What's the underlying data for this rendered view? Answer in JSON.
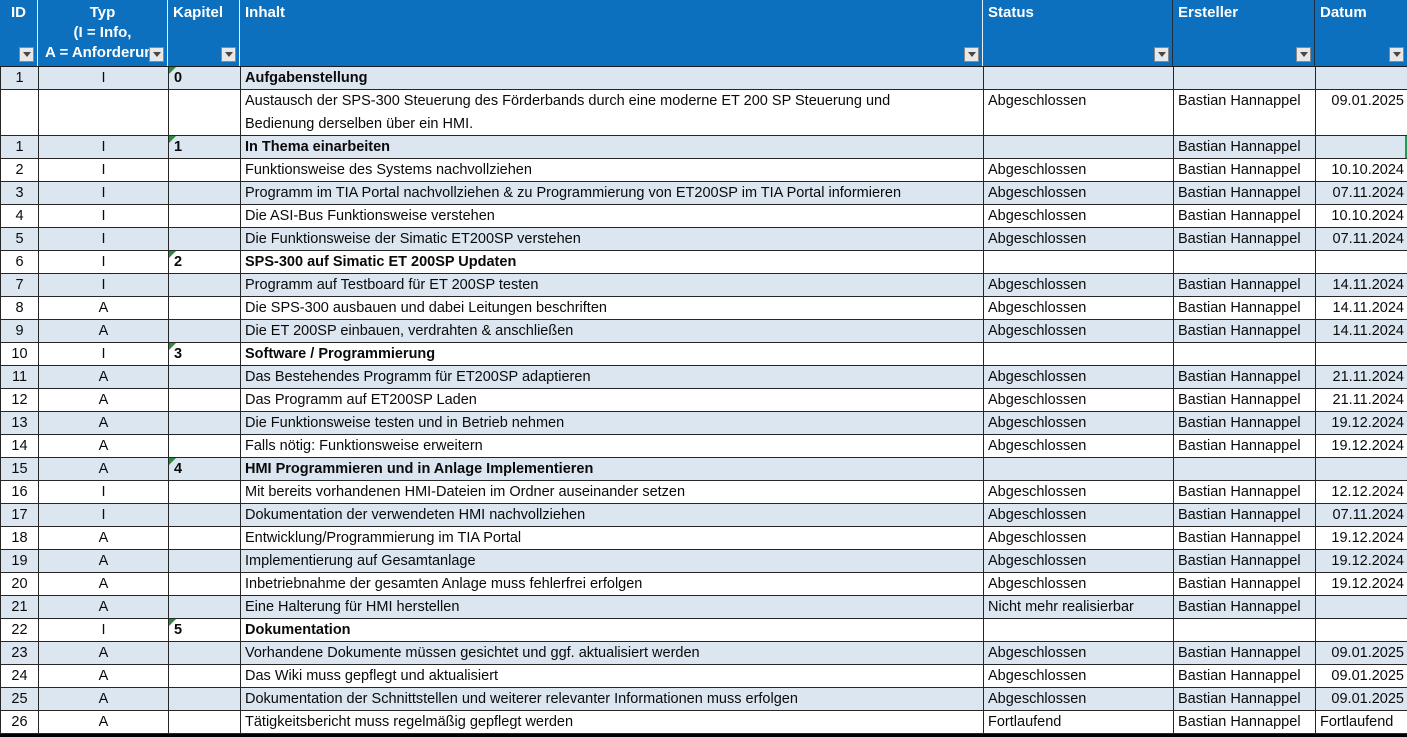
{
  "colors": {
    "header_blue": "#0C70BE",
    "banded_row_blue": "#DCE6F1",
    "grid_border": "#262626",
    "error_triangle_green": "#2E8B3E",
    "selection_edge_green": "#1F9E50",
    "filter_button_bg": "#E8E8E8"
  },
  "table": {
    "columns": [
      {
        "key": "id",
        "label": "ID"
      },
      {
        "key": "typ",
        "label_lines": [
          "Typ",
          "(I = Info,",
          "A = Anforderun"
        ]
      },
      {
        "key": "kapitel",
        "label": "Kapitel"
      },
      {
        "key": "inhalt",
        "label": "Inhalt"
      },
      {
        "key": "status",
        "label": "Status"
      },
      {
        "key": "ersteller",
        "label": "Ersteller"
      },
      {
        "key": "datum",
        "label": "Datum"
      }
    ],
    "rows": [
      {
        "id": "1",
        "typ": "I",
        "kapitel": "0",
        "inhalt": "Aufgabenstellung",
        "status": "",
        "ersteller": "",
        "datum": "",
        "section": true
      },
      {
        "id": "",
        "typ": "",
        "kapitel": "",
        "inhalt_lines": [
          "Austausch der SPS-300 Steuerung des Förderbands durch eine moderne ET 200 SP Steuerung und",
          "Bedienung derselben über ein HMI."
        ],
        "status": "Abgeschlossen",
        "ersteller": "Bastian Hannappel",
        "datum": "09.01.2025"
      },
      {
        "id": "1",
        "typ": "I",
        "kapitel": "1",
        "inhalt": "In Thema einarbeiten",
        "status": "",
        "ersteller": "Bastian Hannappel",
        "datum": "",
        "section": true,
        "right_edge_marker": true
      },
      {
        "id": "2",
        "typ": "I",
        "kapitel": "",
        "inhalt": "Funktionsweise des Systems nachvollziehen",
        "status": "Abgeschlossen",
        "ersteller": "Bastian Hannappel",
        "datum": "10.10.2024"
      },
      {
        "id": "3",
        "typ": "I",
        "kapitel": "",
        "inhalt": "Programm im TIA Portal nachvollziehen & zu Programmierung von ET200SP im TIA Portal informieren",
        "status": "Abgeschlossen",
        "ersteller": "Bastian Hannappel",
        "datum": "07.11.2024"
      },
      {
        "id": "4",
        "typ": "I",
        "kapitel": "",
        "inhalt": "Die ASI-Bus Funktionsweise verstehen",
        "status": "Abgeschlossen",
        "ersteller": "Bastian Hannappel",
        "datum": "10.10.2024"
      },
      {
        "id": "5",
        "typ": "I",
        "kapitel": "",
        "inhalt": "Die Funktionsweise der Simatic ET200SP verstehen",
        "status": "Abgeschlossen",
        "ersteller": "Bastian Hannappel",
        "datum": "07.11.2024"
      },
      {
        "id": "6",
        "typ": "I",
        "kapitel": "2",
        "inhalt": "SPS-300 auf Simatic ET 200SP Updaten",
        "status": "",
        "ersteller": "",
        "datum": "",
        "section": true
      },
      {
        "id": "7",
        "typ": "I",
        "kapitel": "",
        "inhalt": "Programm auf Testboard für ET 200SP testen",
        "status": "Abgeschlossen",
        "ersteller": "Bastian Hannappel",
        "datum": "14.11.2024"
      },
      {
        "id": "8",
        "typ": "A",
        "kapitel": "",
        "inhalt": "Die SPS-300 ausbauen und dabei Leitungen beschriften",
        "status": "Abgeschlossen",
        "ersteller": "Bastian Hannappel",
        "datum": "14.11.2024"
      },
      {
        "id": "9",
        "typ": "A",
        "kapitel": "",
        "inhalt": "Die ET 200SP einbauen, verdrahten & anschließen",
        "status": "Abgeschlossen",
        "ersteller": "Bastian Hannappel",
        "datum": "14.11.2024"
      },
      {
        "id": "10",
        "typ": "I",
        "kapitel": "3",
        "inhalt": "Software / Programmierung",
        "status": "",
        "ersteller": "",
        "datum": "",
        "section": true
      },
      {
        "id": "11",
        "typ": "A",
        "kapitel": "",
        "inhalt": "Das Bestehendes Programm für ET200SP adaptieren",
        "status": "Abgeschlossen",
        "ersteller": "Bastian Hannappel",
        "datum": "21.11.2024"
      },
      {
        "id": "12",
        "typ": "A",
        "kapitel": "",
        "inhalt": "Das Programm auf ET200SP Laden",
        "status": "Abgeschlossen",
        "ersteller": "Bastian Hannappel",
        "datum": "21.11.2024"
      },
      {
        "id": "13",
        "typ": "A",
        "kapitel": "",
        "inhalt": "Die Funktionsweise testen und in Betrieb nehmen",
        "status": "Abgeschlossen",
        "ersteller": "Bastian Hannappel",
        "datum": "19.12.2024"
      },
      {
        "id": "14",
        "typ": "A",
        "kapitel": "",
        "inhalt": "Falls nötig: Funktionsweise erweitern",
        "status": "Abgeschlossen",
        "ersteller": "Bastian Hannappel",
        "datum": "19.12.2024"
      },
      {
        "id": "15",
        "typ": "A",
        "kapitel": "4",
        "inhalt": "HMI Programmieren und in Anlage Implementieren",
        "status": "",
        "ersteller": "",
        "datum": "",
        "section": true
      },
      {
        "id": "16",
        "typ": "I",
        "kapitel": "",
        "inhalt": "Mit bereits vorhandenen HMI-Dateien im Ordner auseinander setzen",
        "status": "Abgeschlossen",
        "ersteller": "Bastian Hannappel",
        "datum": "12.12.2024"
      },
      {
        "id": "17",
        "typ": "I",
        "kapitel": "",
        "inhalt": "Dokumentation der verwendeten HMI nachvollziehen",
        "status": "Abgeschlossen",
        "ersteller": "Bastian Hannappel",
        "datum": "07.11.2024"
      },
      {
        "id": "18",
        "typ": "A",
        "kapitel": "",
        "inhalt": "Entwicklung/Programmierung im TIA Portal",
        "status": "Abgeschlossen",
        "ersteller": "Bastian Hannappel",
        "datum": "19.12.2024"
      },
      {
        "id": "19",
        "typ": "A",
        "kapitel": "",
        "inhalt": "Implementierung auf Gesamtanlage",
        "status": "Abgeschlossen",
        "ersteller": "Bastian Hannappel",
        "datum": "19.12.2024"
      },
      {
        "id": "20",
        "typ": "A",
        "kapitel": "",
        "inhalt": "Inbetriebnahme der gesamten Anlage muss fehlerfrei erfolgen",
        "status": "Abgeschlossen",
        "ersteller": "Bastian Hannappel",
        "datum": "19.12.2024"
      },
      {
        "id": "21",
        "typ": "A",
        "kapitel": "",
        "inhalt": "Eine Halterung für HMI herstellen",
        "status": "Nicht mehr realisierbar",
        "ersteller": "Bastian Hannappel",
        "datum": ""
      },
      {
        "id": "22",
        "typ": "I",
        "kapitel": "5",
        "inhalt": "Dokumentation",
        "status": "",
        "ersteller": "",
        "datum": "",
        "section": true
      },
      {
        "id": "23",
        "typ": "A",
        "kapitel": "",
        "inhalt": "Vorhandene Dokumente müssen gesichtet und ggf. aktualisiert werden",
        "status": "Abgeschlossen",
        "ersteller": "Bastian Hannappel",
        "datum": "09.01.2025"
      },
      {
        "id": "24",
        "typ": "A",
        "kapitel": "",
        "inhalt": "Das Wiki muss gepflegt und aktualisiert",
        "status": "Abgeschlossen",
        "ersteller": "Bastian Hannappel",
        "datum": "09.01.2025"
      },
      {
        "id": "25",
        "typ": "A",
        "kapitel": "",
        "inhalt": "Dokumentation der Schnittstellen und weiterer relevanter Informationen muss erfolgen",
        "status": "Abgeschlossen",
        "ersteller": "Bastian Hannappel",
        "datum": "09.01.2025"
      },
      {
        "id": "26",
        "typ": "A",
        "kapitel": "",
        "inhalt": "Tätigkeitsbericht muss regelmäßig gepflegt werden",
        "status": "Fortlaufend",
        "ersteller": "Bastian Hannappel",
        "datum": "Fortlaufend"
      }
    ]
  }
}
